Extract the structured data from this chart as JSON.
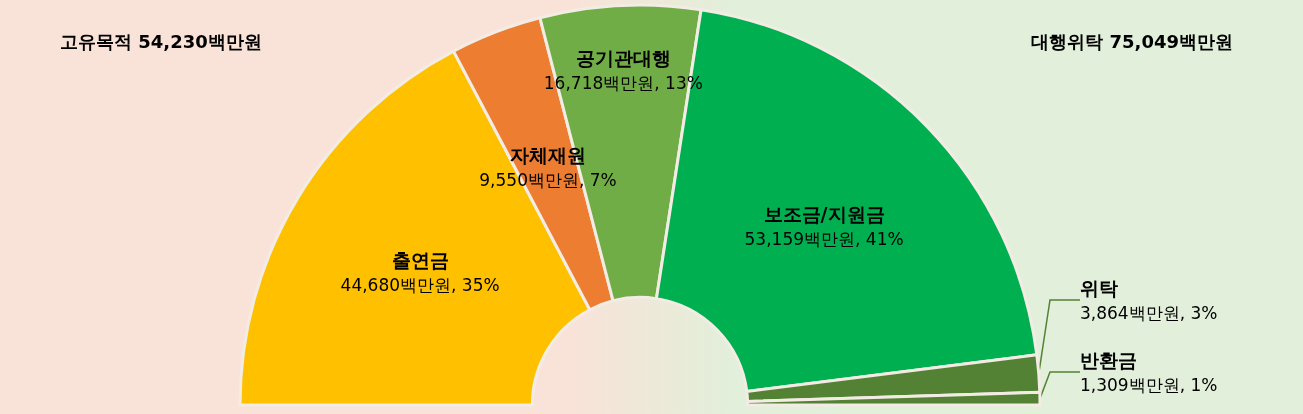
{
  "chart_data": {
    "type": "donut",
    "categories": [
      "출연금",
      "자체재원",
      "공기관대행",
      "보조금/지원금",
      "위탁",
      "반환금"
    ],
    "values": [
      44680,
      9550,
      16718,
      53159,
      3864,
      1309
    ],
    "colors": [
      "#ffc000",
      "#ed7d31",
      "#70ad47",
      "#00b050",
      "#548235",
      "#548235"
    ],
    "value_labels": [
      "44,680백만원, 35%",
      "9,550백만원, 7%",
      "16,718백만원, 13%",
      "53,159백만원, 41%",
      "3,864백만원, 3%",
      "1,309백만원, 1%"
    ],
    "annotations": [
      "고유목적 54,230백만원",
      "대행위탁 75,049백만원"
    ],
    "legend": false
  }
}
